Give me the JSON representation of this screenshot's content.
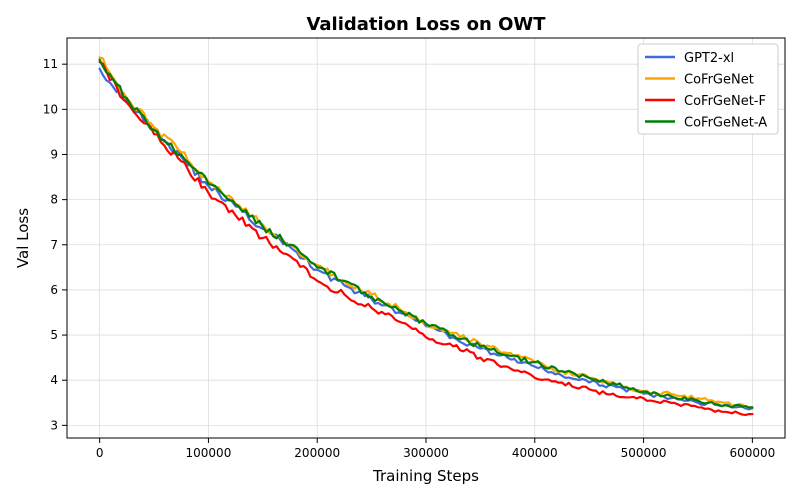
{
  "chart_data": {
    "type": "line",
    "title": "Validation Loss on OWT",
    "xlabel": "Training Steps",
    "ylabel": "Val Loss",
    "xlim": [
      -30000,
      630000
    ],
    "ylim": [
      2.72,
      11.58
    ],
    "xticks": [
      0,
      100000,
      200000,
      300000,
      400000,
      500000,
      600000
    ],
    "xtick_labels": [
      "0",
      "100000",
      "200000",
      "300000",
      "400000",
      "500000",
      "600000"
    ],
    "yticks": [
      3,
      4,
      5,
      6,
      7,
      8,
      9,
      10,
      11
    ],
    "ytick_labels": [
      "3",
      "4",
      "5",
      "6",
      "7",
      "8",
      "9",
      "10",
      "11"
    ],
    "grid": true,
    "legend_position": "top-right",
    "x": [
      0,
      25000,
      50000,
      75000,
      100000,
      125000,
      150000,
      175000,
      200000,
      225000,
      250000,
      275000,
      300000,
      325000,
      350000,
      375000,
      400000,
      425000,
      450000,
      475000,
      500000,
      525000,
      550000,
      575000,
      600000
    ],
    "series": [
      {
        "name": "GPT2-xl",
        "color": "#4169e1",
        "values": [
          10.9,
          10.2,
          9.55,
          8.95,
          8.3,
          7.85,
          7.35,
          6.95,
          6.45,
          6.1,
          5.8,
          5.5,
          5.2,
          4.95,
          4.7,
          4.5,
          4.3,
          4.1,
          3.95,
          3.85,
          3.7,
          3.6,
          3.5,
          3.45,
          3.38
        ]
      },
      {
        "name": "CoFrGeNet",
        "color": "#ffa500",
        "values": [
          11.15,
          10.25,
          9.6,
          9.05,
          8.4,
          7.9,
          7.45,
          7.0,
          6.55,
          6.2,
          5.9,
          5.6,
          5.25,
          5.05,
          4.8,
          4.6,
          4.4,
          4.2,
          4.05,
          3.9,
          3.75,
          3.7,
          3.6,
          3.5,
          3.4
        ]
      },
      {
        "name": "CoFrGeNet-F",
        "color": "#ff0000",
        "values": [
          11.05,
          10.15,
          9.45,
          8.85,
          8.15,
          7.65,
          7.15,
          6.75,
          6.2,
          5.9,
          5.6,
          5.3,
          4.95,
          4.75,
          4.5,
          4.3,
          4.05,
          3.95,
          3.8,
          3.65,
          3.6,
          3.5,
          3.4,
          3.3,
          3.25
        ]
      },
      {
        "name": "CoFrGeNet-A",
        "color": "#008000",
        "values": [
          11.1,
          10.25,
          9.55,
          9.0,
          8.35,
          7.9,
          7.4,
          7.0,
          6.5,
          6.2,
          5.85,
          5.55,
          5.25,
          5.0,
          4.75,
          4.55,
          4.4,
          4.2,
          4.05,
          3.9,
          3.75,
          3.65,
          3.55,
          3.45,
          3.4
        ]
      }
    ]
  }
}
